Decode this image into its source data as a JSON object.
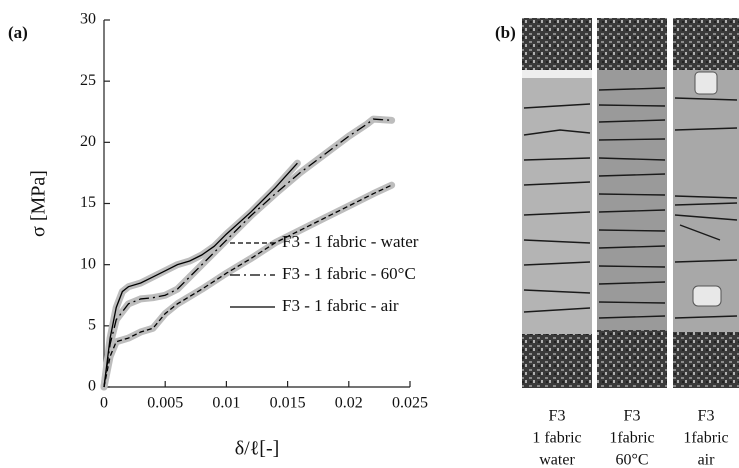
{
  "chart_data": {
    "type": "line",
    "panel_label": "(a)",
    "x_label": "δ/ℓ[-]",
    "y_label": "σ [MPa]",
    "xlim": [
      0,
      0.025
    ],
    "xticks": [
      0,
      0.005,
      0.01,
      0.015,
      0.02,
      0.025
    ],
    "ylim": [
      0,
      30
    ],
    "yticks": [
      0,
      5,
      10,
      15,
      20,
      25,
      30
    ],
    "legend": "lower right",
    "series": [
      {
        "name": "F3 - 1 fabric - water",
        "color": "#000000",
        "dash": "dashed",
        "x": [
          0,
          0.0005,
          0.001,
          0.002,
          0.003,
          0.004,
          0.005,
          0.006,
          0.008,
          0.01,
          0.012,
          0.014,
          0.016,
          0.018,
          0.02,
          0.022,
          0.0235
        ],
        "values": [
          0,
          2.5,
          3.7,
          4.0,
          4.5,
          4.8,
          6.0,
          6.8,
          8.0,
          9.3,
          10.5,
          11.8,
          12.8,
          13.8,
          14.8,
          15.8,
          16.5
        ]
      },
      {
        "name": "F3 - 1 fabric - 60°C",
        "color": "#000000",
        "dash": "dashdot",
        "x": [
          0,
          0.0005,
          0.001,
          0.002,
          0.003,
          0.004,
          0.005,
          0.006,
          0.008,
          0.01,
          0.012,
          0.014,
          0.016,
          0.018,
          0.02,
          0.0215,
          0.022,
          0.0235
        ],
        "values": [
          0,
          3.5,
          5.5,
          6.8,
          7.2,
          7.3,
          7.5,
          8.0,
          10.0,
          12.0,
          14.0,
          15.8,
          17.5,
          19.0,
          20.5,
          21.5,
          21.9,
          21.8
        ]
      },
      {
        "name": "F3 - 1 fabric - air",
        "color": "#000000",
        "dash": "solid",
        "x": [
          0,
          0.0005,
          0.001,
          0.0015,
          0.002,
          0.003,
          0.004,
          0.005,
          0.006,
          0.007,
          0.008,
          0.009,
          0.01,
          0.012,
          0.014,
          0.0158
        ],
        "values": [
          0,
          4.0,
          6.5,
          7.8,
          8.2,
          8.5,
          9.0,
          9.5,
          10.0,
          10.3,
          10.8,
          11.5,
          12.5,
          14.3,
          16.3,
          18.3
        ]
      }
    ]
  },
  "panel_b": {
    "label": "(b)",
    "specimens": [
      {
        "lines": [
          "F3",
          "1 fabric",
          "water"
        ]
      },
      {
        "lines": [
          "F3",
          "1fabric",
          "60°C"
        ]
      },
      {
        "lines": [
          "F3",
          "1fabric",
          "air"
        ]
      }
    ]
  }
}
